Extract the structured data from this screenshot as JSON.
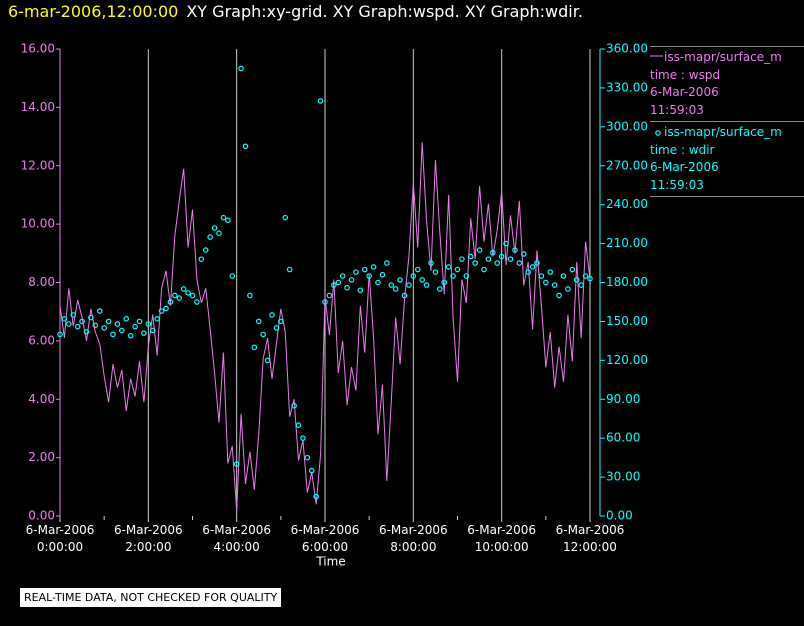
{
  "header": {
    "date": "6-mar-2006,12:00:00",
    "title": "XY Graph:xy-grid.  XY Graph:wspd.  XY Graph:wdir."
  },
  "chart_data": {
    "type": "line-scatter",
    "xlabel": "Time",
    "xlim": [
      0,
      12
    ],
    "xticks": [
      {
        "value": 0,
        "label": "6-Mar-2006 0:00:00"
      },
      {
        "value": 2,
        "label": "6-Mar-2006 2:00:00"
      },
      {
        "value": 4,
        "label": "6-Mar-2006 4:00:00"
      },
      {
        "value": 6,
        "label": "6-Mar-2006 6:00:00"
      },
      {
        "value": 8,
        "label": "6-Mar-2006 8:00:00"
      },
      {
        "value": 10,
        "label": "6-Mar-2006 10:00:00"
      },
      {
        "value": 12,
        "label": "6-Mar-2006 12:00:00"
      }
    ],
    "xminorticks": [
      1,
      3,
      5,
      7,
      9,
      11
    ],
    "ylim": [
      0,
      16
    ],
    "yticks": [
      {
        "value": 0,
        "label": "0.00"
      },
      {
        "value": 2,
        "label": "2.00"
      },
      {
        "value": 4,
        "label": "4.00"
      },
      {
        "value": 6,
        "label": "6.00"
      },
      {
        "value": 8,
        "label": "8.00"
      },
      {
        "value": 10,
        "label": "10.00"
      },
      {
        "value": 12,
        "label": "12.00"
      },
      {
        "value": 14,
        "label": "14.00"
      },
      {
        "value": 16,
        "label": "16.00"
      }
    ],
    "y2lim": [
      0,
      360
    ],
    "y2ticks": [
      {
        "value": 0,
        "label": "0.00"
      },
      {
        "value": 30,
        "label": "30.00"
      },
      {
        "value": 60,
        "label": "60.00"
      },
      {
        "value": 90,
        "label": "90.00"
      },
      {
        "value": 120,
        "label": "120.00"
      },
      {
        "value": 150,
        "label": "150.00"
      },
      {
        "value": 180,
        "label": "180.00"
      },
      {
        "value": 210,
        "label": "210.00"
      },
      {
        "value": 240,
        "label": "240.00"
      },
      {
        "value": 270,
        "label": "270.00"
      },
      {
        "value": 300,
        "label": "300.00"
      },
      {
        "value": 330,
        "label": "330.00"
      },
      {
        "value": 360,
        "label": "360.00"
      }
    ],
    "grid": true,
    "x": [
      0,
      0.1,
      0.2,
      0.3,
      0.4,
      0.5,
      0.6,
      0.7,
      0.8,
      0.9,
      1,
      1.1,
      1.2,
      1.3,
      1.4,
      1.5,
      1.6,
      1.7,
      1.8,
      1.9,
      2,
      2.1,
      2.2,
      2.3,
      2.4,
      2.5,
      2.6,
      2.7,
      2.8,
      2.9,
      3,
      3.1,
      3.2,
      3.3,
      3.4,
      3.5,
      3.6,
      3.7,
      3.8,
      3.9,
      4,
      4.1,
      4.2,
      4.3,
      4.4,
      4.5,
      4.6,
      4.7,
      4.8,
      4.9,
      5,
      5.1,
      5.2,
      5.3,
      5.4,
      5.5,
      5.6,
      5.7,
      5.8,
      5.9,
      6,
      6.1,
      6.2,
      6.3,
      6.4,
      6.5,
      6.6,
      6.7,
      6.8,
      6.9,
      7,
      7.1,
      7.2,
      7.3,
      7.4,
      7.5,
      7.6,
      7.7,
      7.8,
      7.9,
      8,
      8.1,
      8.2,
      8.3,
      8.4,
      8.5,
      8.6,
      8.7,
      8.8,
      8.9,
      9,
      9.1,
      9.2,
      9.3,
      9.4,
      9.5,
      9.6,
      9.7,
      9.8,
      9.9,
      10,
      10.1,
      10.2,
      10.3,
      10.4,
      10.5,
      10.6,
      10.7,
      10.8,
      10.9,
      11,
      11.1,
      11.2,
      11.3,
      11.4,
      11.5,
      11.6,
      11.7,
      11.8,
      11.9,
      12
    ],
    "series": [
      {
        "name": "iss-mapr/surface_m",
        "kind": "line",
        "color": "#e87de8",
        "legend_lines": [
          "time : wspd",
          "6-Mar-2006",
          "11:59:03"
        ],
        "values": [
          7.2,
          6.1,
          7.8,
          6.5,
          7.4,
          6.8,
          6.0,
          7.1,
          6.3,
          5.9,
          4.8,
          3.9,
          5.2,
          4.4,
          5.0,
          3.6,
          4.7,
          4.1,
          5.3,
          3.9,
          5.8,
          6.9,
          5.5,
          7.8,
          8.4,
          7.2,
          9.6,
          10.8,
          11.9,
          9.2,
          10.5,
          8.1,
          7.3,
          7.8,
          6.4,
          4.9,
          3.2,
          5.6,
          1.8,
          2.4,
          0.2,
          3.5,
          1.1,
          2.2,
          0.9,
          2.8,
          5.4,
          6.1,
          4.7,
          5.9,
          7.1,
          6.3,
          3.4,
          4.0,
          1.9,
          2.6,
          0.8,
          1.5,
          0.4,
          2.1,
          7.5,
          6.2,
          8.1,
          4.9,
          6.0,
          3.8,
          5.1,
          4.3,
          7.2,
          5.6,
          8.3,
          6.1,
          2.8,
          4.5,
          1.2,
          3.9,
          6.8,
          5.2,
          7.4,
          8.9,
          11.4,
          9.2,
          12.8,
          10.1,
          8.4,
          12.2,
          9.7,
          7.6,
          11.0,
          6.8,
          4.6,
          8.1,
          7.3,
          10.2,
          8.8,
          11.3,
          9.4,
          10.7,
          8.9,
          9.8,
          11.1,
          8.6,
          10.3,
          9.0,
          10.8,
          7.9,
          8.7,
          6.4,
          9.1,
          7.2,
          5.1,
          6.3,
          4.4,
          5.8,
          4.6,
          6.9,
          5.3,
          8.7,
          6.1,
          9.4,
          8.1
        ]
      },
      {
        "name": "iss-mapr/surface_m",
        "kind": "scatter",
        "axis": "y2",
        "color": "#00ffff",
        "legend_lines": [
          "time : wdir",
          "6-Mar-2006",
          "11:59:03"
        ],
        "values": [
          140,
          152,
          148,
          155,
          146,
          150,
          142,
          153,
          147,
          158,
          145,
          150,
          140,
          148,
          143,
          152,
          139,
          146,
          150,
          141,
          148,
          143,
          152,
          158,
          160,
          165,
          170,
          168,
          175,
          172,
          170,
          165,
          198,
          205,
          215,
          222,
          218,
          230,
          228,
          185,
          40,
          345,
          285,
          170,
          130,
          150,
          140,
          120,
          155,
          145,
          150,
          230,
          190,
          85,
          70,
          60,
          45,
          35,
          15,
          320,
          165,
          170,
          178,
          180,
          185,
          176,
          182,
          188,
          174,
          190,
          185,
          192,
          180,
          186,
          195,
          178,
          175,
          182,
          170,
          178,
          185,
          190,
          182,
          178,
          195,
          188,
          175,
          180,
          192,
          185,
          190,
          198,
          185,
          200,
          195,
          205,
          190,
          198,
          203,
          195,
          200,
          210,
          198,
          205,
          195,
          202,
          188,
          192,
          195,
          185,
          180,
          188,
          178,
          170,
          185,
          175,
          190,
          182,
          178,
          185,
          183
        ]
      }
    ]
  },
  "footer": "REAL-TIME DATA, NOT CHECKED FOR QUALITY"
}
